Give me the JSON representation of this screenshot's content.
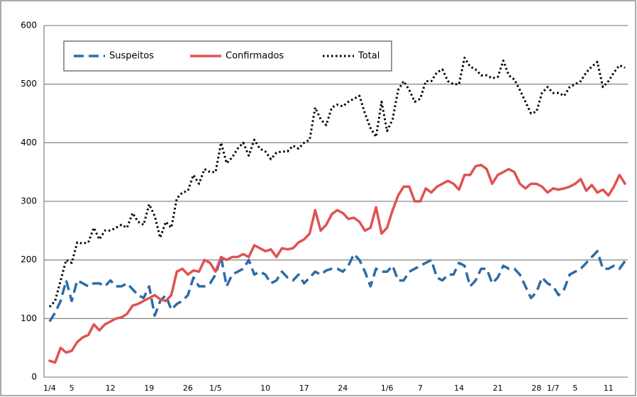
{
  "chart_data": {
    "type": "line",
    "categories": [
      "1/4",
      null,
      null,
      null,
      "5",
      null,
      null,
      null,
      null,
      null,
      null,
      "12",
      null,
      null,
      null,
      null,
      null,
      null,
      "19",
      null,
      null,
      null,
      null,
      null,
      null,
      "26",
      null,
      null,
      null,
      null,
      "1/5",
      null,
      null,
      null,
      null,
      null,
      null,
      null,
      null,
      "10",
      null,
      null,
      null,
      null,
      null,
      null,
      "17",
      null,
      null,
      null,
      null,
      null,
      null,
      "24",
      null,
      null,
      null,
      null,
      null,
      null,
      null,
      "1/6",
      null,
      null,
      null,
      null,
      null,
      "7",
      null,
      null,
      null,
      null,
      null,
      null,
      "14",
      null,
      null,
      null,
      null,
      null,
      null,
      "21",
      null,
      null,
      null,
      null,
      null,
      null,
      "28",
      null,
      null,
      "1/7",
      null,
      null,
      null,
      "5",
      null,
      null,
      null,
      null,
      null,
      "11",
      null,
      null,
      null
    ],
    "series": [
      {
        "name": "Suspeitos",
        "color": "#2c6ca8",
        "style": "dashed",
        "values": [
          95,
          110,
          130,
          165,
          130,
          165,
          160,
          155,
          160,
          160,
          155,
          165,
          155,
          155,
          160,
          150,
          140,
          135,
          155,
          105,
          130,
          140,
          115,
          125,
          130,
          140,
          170,
          155,
          155,
          160,
          175,
          205,
          155,
          175,
          180,
          185,
          200,
          175,
          180,
          175,
          160,
          165,
          180,
          170,
          165,
          175,
          160,
          170,
          180,
          175,
          182,
          185,
          185,
          180,
          190,
          210,
          200,
          180,
          155,
          185,
          180,
          180,
          190,
          165,
          165,
          180,
          185,
          190,
          195,
          200,
          170,
          165,
          175,
          175,
          195,
          190,
          155,
          165,
          185,
          185,
          160,
          170,
          190,
          185,
          185,
          175,
          155,
          135,
          145,
          170,
          160,
          155,
          140,
          150,
          175,
          180,
          185,
          195,
          205,
          215,
          185,
          185,
          190,
          185,
          198
        ]
      },
      {
        "name": "Confirmados",
        "color": "#e05252",
        "style": "solid",
        "values": [
          28,
          25,
          50,
          42,
          45,
          60,
          68,
          72,
          90,
          80,
          90,
          95,
          100,
          102,
          108,
          122,
          125,
          130,
          135,
          140,
          133,
          130,
          140,
          180,
          185,
          175,
          182,
          180,
          200,
          195,
          180,
          205,
          200,
          205,
          205,
          210,
          205,
          225,
          220,
          215,
          218,
          205,
          220,
          218,
          220,
          230,
          235,
          245,
          285,
          250,
          260,
          278,
          285,
          280,
          270,
          272,
          265,
          250,
          255,
          290,
          245,
          255,
          285,
          310,
          325,
          325,
          300,
          300,
          322,
          315,
          325,
          330,
          335,
          330,
          320,
          345,
          345,
          360,
          362,
          355,
          330,
          345,
          350,
          355,
          350,
          330,
          322,
          330,
          330,
          325,
          315,
          322,
          320,
          322,
          325,
          330,
          338,
          318,
          328,
          315,
          320,
          310,
          325,
          345,
          330
        ]
      },
      {
        "name": "Total",
        "color": "#000000",
        "style": "dotted",
        "values": [
          120,
          130,
          165,
          200,
          195,
          230,
          228,
          230,
          255,
          235,
          250,
          250,
          255,
          260,
          255,
          280,
          265,
          260,
          295,
          275,
          238,
          265,
          255,
          305,
          315,
          318,
          345,
          330,
          355,
          350,
          350,
          400,
          365,
          375,
          390,
          400,
          378,
          405,
          390,
          385,
          372,
          383,
          385,
          385,
          395,
          390,
          400,
          405,
          460,
          440,
          430,
          460,
          465,
          462,
          470,
          475,
          480,
          450,
          425,
          410,
          470,
          420,
          440,
          490,
          505,
          490,
          470,
          475,
          505,
          505,
          520,
          525,
          505,
          500,
          500,
          545,
          530,
          525,
          515,
          515,
          510,
          512,
          540,
          515,
          508,
          490,
          470,
          450,
          453,
          485,
          495,
          485,
          485,
          480,
          495,
          500,
          505,
          520,
          530,
          538,
          495,
          505,
          520,
          532,
          528
        ]
      }
    ],
    "ylim": [
      0,
      600
    ],
    "yticks": [
      0,
      100,
      200,
      300,
      400,
      500,
      600
    ],
    "grid": true
  }
}
